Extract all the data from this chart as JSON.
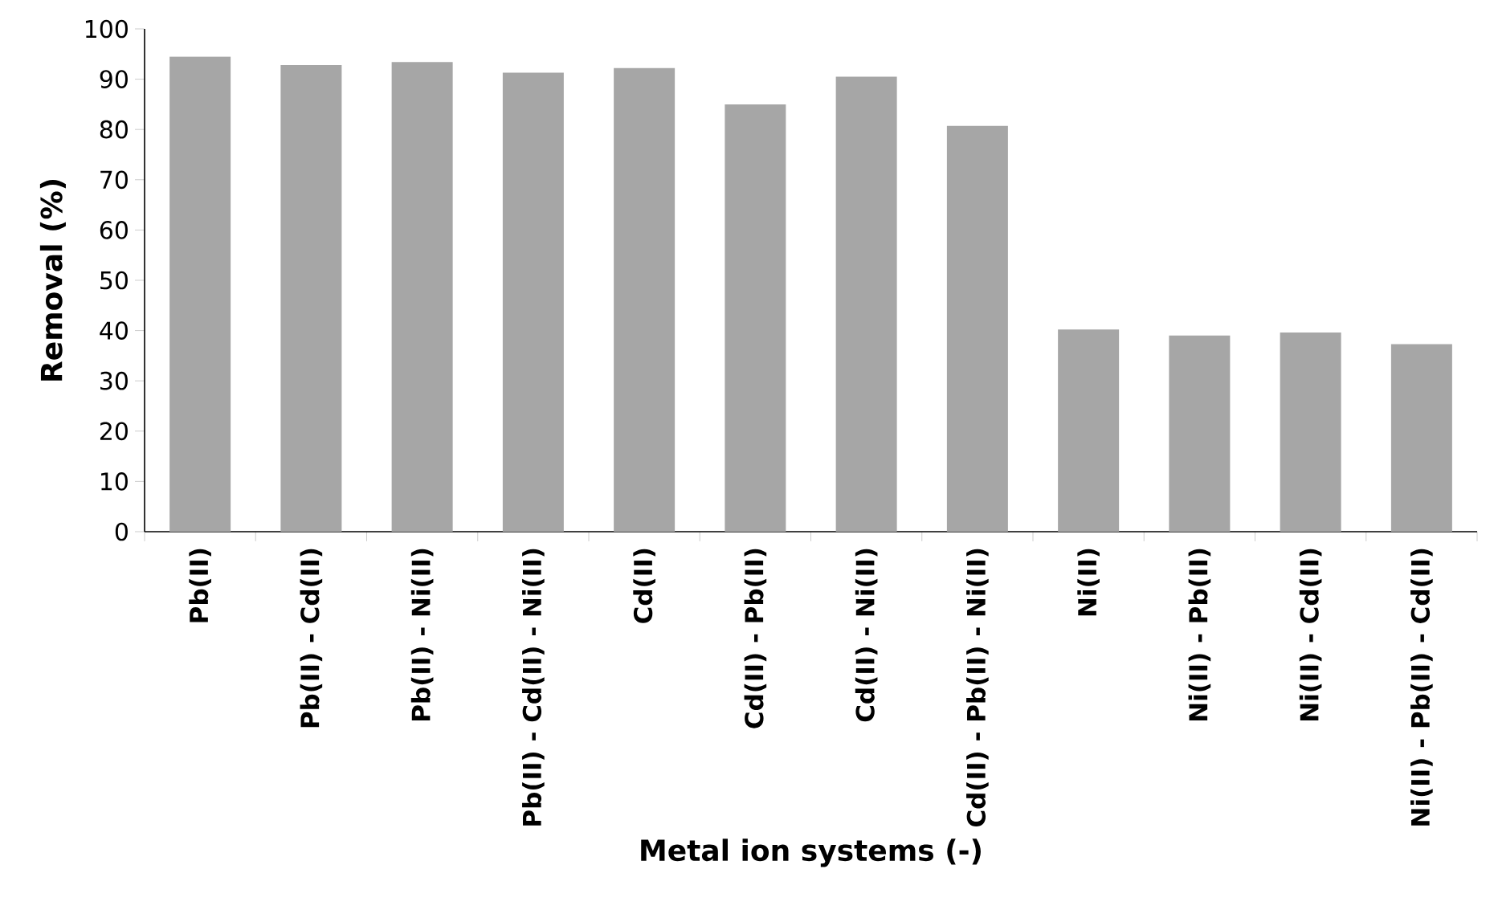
{
  "chart_data": {
    "type": "bar",
    "xlabel": "Metal ion systems (-)",
    "ylabel": "Removal (%)",
    "categories": [
      "Pb(II)",
      "Pb(II) - Cd(II)",
      "Pb(II) - Ni(II)",
      "Pb(II) - Cd(II) - Ni(II)",
      "Cd(II)",
      "Cd(II) - Pb(II)",
      "Cd(II) - Ni(II)",
      "Cd(II) - Pb(II) - Ni(II)",
      "Ni(II)",
      "Ni(II) - Pb(II)",
      "Ni(II) - Cd(II)",
      "Ni(II) - Pb(II) - Cd(II)"
    ],
    "values": [
      94.5,
      92.8,
      93.4,
      91.3,
      92.2,
      85.0,
      90.5,
      80.7,
      40.2,
      39.0,
      39.6,
      37.3
    ],
    "color": "#a6a6a6",
    "ylim": [
      0,
      100
    ],
    "yticks": [
      0,
      10,
      20,
      30,
      40,
      50,
      60,
      70,
      80,
      90,
      100
    ]
  }
}
